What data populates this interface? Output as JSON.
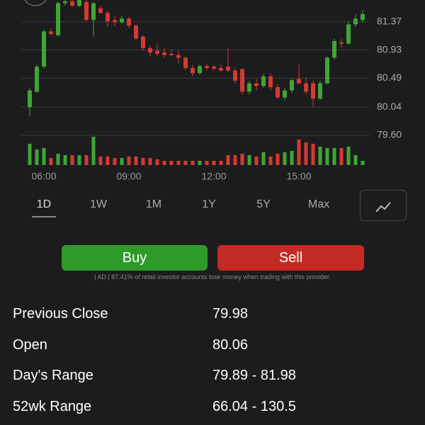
{
  "chart_data": {
    "type": "candlestick",
    "categories": [
      null,
      null,
      "06:00",
      null,
      null,
      null,
      null,
      null,
      null,
      null,
      null,
      null,
      null,
      null,
      "09:00",
      null,
      null,
      null,
      null,
      null,
      null,
      null,
      null,
      null,
      null,
      null,
      "12:00",
      null,
      null,
      null,
      null,
      null,
      null,
      null,
      null,
      null,
      null,
      null,
      "15:00",
      null,
      null,
      null,
      null,
      null,
      null,
      null,
      null,
      null
    ],
    "open": [
      80.04,
      80.28,
      80.67,
      81.22,
      81.16,
      81.66,
      81.69,
      81.62,
      81.68,
      81.4,
      81.58,
      81.51,
      81.4,
      81.36,
      81.42,
      81.31,
      81.14,
      80.96,
      80.92,
      80.89,
      80.87,
      80.85,
      80.81,
      80.65,
      80.57,
      80.68,
      80.67,
      80.65,
      80.67,
      80.61,
      80.63,
      80.28,
      80.41,
      80.37,
      80.52,
      80.35,
      80.19,
      80.3,
      80.48,
      80.41,
      80.41,
      80.17,
      80.41,
      80.81,
      81.05,
      81.03,
      81.33,
      81.4
    ],
    "high": [
      80.34,
      80.7,
      81.25,
      81.27,
      81.69,
      81.71,
      81.71,
      81.71,
      81.71,
      81.68,
      81.62,
      81.55,
      81.47,
      81.47,
      81.45,
      81.34,
      81.16,
      81.0,
      81.03,
      80.96,
      80.94,
      80.92,
      80.83,
      80.7,
      80.7,
      80.72,
      80.7,
      80.7,
      80.96,
      80.65,
      80.65,
      80.45,
      80.48,
      80.56,
      80.57,
      80.39,
      80.34,
      80.48,
      80.7,
      80.5,
      80.45,
      80.45,
      80.83,
      81.11,
      81.11,
      81.38,
      81.49,
      81.55
    ],
    "low": [
      79.9,
      80.26,
      80.64,
      81.16,
      81.14,
      81.62,
      81.6,
      81.6,
      81.38,
      81.14,
      81.49,
      81.29,
      81.31,
      81.34,
      81.27,
      81.07,
      80.92,
      80.83,
      80.83,
      80.81,
      80.83,
      80.72,
      80.61,
      80.52,
      80.54,
      80.61,
      80.61,
      80.59,
      80.59,
      80.41,
      80.24,
      80.24,
      80.3,
      80.34,
      80.3,
      80.17,
      80.15,
      80.26,
      80.39,
      80.24,
      80.04,
      80.15,
      80.39,
      80.78,
      80.96,
      81.01,
      81.29,
      81.36
    ],
    "close": [
      80.3,
      80.67,
      81.22,
      81.18,
      81.66,
      81.69,
      81.62,
      81.71,
      81.4,
      81.66,
      81.51,
      81.38,
      81.36,
      81.42,
      81.31,
      81.11,
      80.96,
      80.89,
      80.87,
      80.85,
      80.85,
      80.81,
      80.65,
      80.57,
      80.68,
      80.65,
      80.64,
      80.61,
      80.61,
      80.45,
      80.28,
      80.41,
      80.37,
      80.52,
      80.35,
      80.19,
      80.3,
      80.46,
      80.41,
      80.28,
      80.17,
      80.41,
      80.81,
      81.07,
      81.03,
      81.33,
      81.42,
      81.49
    ],
    "volume": [
      30,
      22,
      24,
      10,
      16,
      14,
      14,
      14,
      14,
      40,
      12,
      12,
      10,
      10,
      12,
      12,
      10,
      10,
      8,
      6,
      6,
      6,
      6,
      6,
      6,
      6,
      6,
      6,
      14,
      14,
      16,
      14,
      12,
      18,
      12,
      16,
      18,
      20,
      36,
      32,
      30,
      26,
      24,
      24,
      24,
      26,
      14,
      6
    ],
    "up_color": "#3fa535",
    "down_color": "#d33a32",
    "ylim": [
      79.6,
      81.71
    ],
    "yticks": [
      {
        "value": 79.6,
        "label": "79.60"
      },
      80.04,
      80.49,
      80.93,
      81.37
    ],
    "grid": true
  },
  "ranges": [
    "1D",
    "1W",
    "1M",
    "1Y",
    "5Y",
    "Max"
  ],
  "buttons": {
    "buy": "Buy",
    "sell": "Sell"
  },
  "disclaimer": "| AD | 87.41% of retail investor accounts lose money when trading with this provider.",
  "stats": [
    {
      "label": "Previous Close",
      "value": 79.98
    },
    {
      "label": "Open",
      "value": 80.06
    },
    {
      "label": "Day's Range",
      "value": "79.89 - 81.98"
    },
    {
      "label": "52wk Range",
      "value": "66.04 - 130.5"
    }
  ]
}
